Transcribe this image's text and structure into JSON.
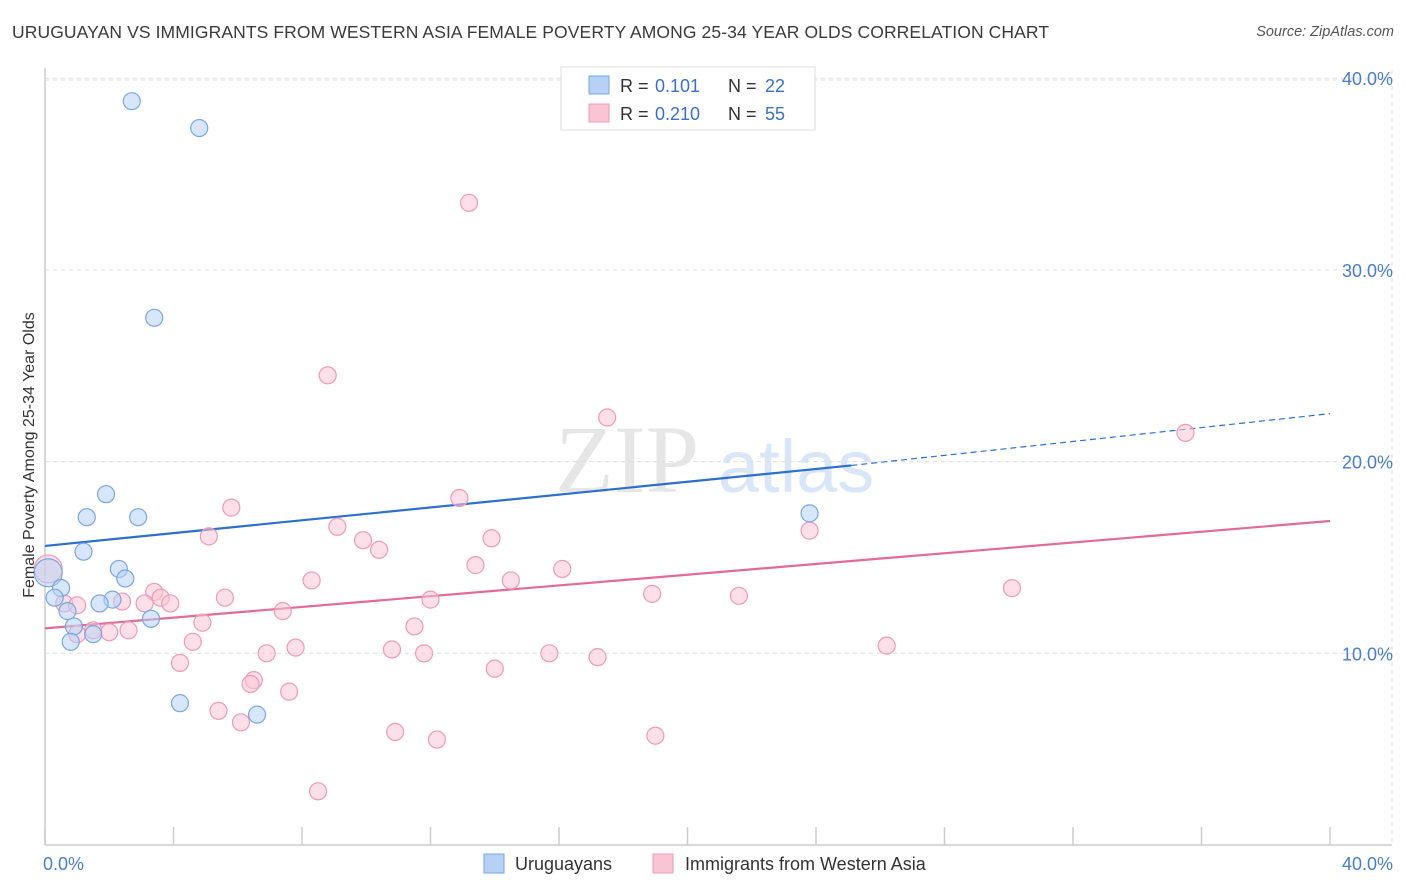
{
  "title": "URUGUAYAN VS IMMIGRANTS FROM WESTERN ASIA FEMALE POVERTY AMONG 25-34 YEAR OLDS CORRELATION CHART",
  "source": "Source: ZipAtlas.com",
  "watermark": {
    "zip": "ZIP",
    "atlas": "atlas"
  },
  "legend": {
    "r_label": "R = ",
    "n_label": "N = ",
    "series": [
      {
        "name": "Uruguayans",
        "r": "0.101",
        "n": "22"
      },
      {
        "name": "Immigrants from Western Asia",
        "r": "0.210",
        "n": "55"
      }
    ]
  },
  "chart_data": {
    "type": "scatter",
    "title": "URUGUAYAN VS IMMIGRANTS FROM WESTERN ASIA FEMALE POVERTY AMONG 25-34 YEAR OLDS CORRELATION CHART",
    "xlabel": "",
    "ylabel": "Female Poverty Among 25-34 Year Olds",
    "xlim": [
      0,
      40
    ],
    "ylim": [
      0,
      41
    ],
    "x_tick_labels": [
      "0.0%",
      "40.0%"
    ],
    "y_ticks": [
      10,
      20,
      30,
      40
    ],
    "y_tick_labels": [
      "10.0%",
      "20.0%",
      "30.0%",
      "40.0%"
    ],
    "grid": true,
    "colors": {
      "uruguayans_fill": "#b6d1f5",
      "uruguayans_stroke": "#7aa6e0",
      "uruguayans_line": "#2d6fcf",
      "immigrants_fill": "#f9c5d5",
      "immigrants_stroke": "#ec9bb6",
      "immigrants_line": "#e16b96"
    },
    "series": [
      {
        "name": "Uruguayans",
        "points": [
          {
            "x": 2.7,
            "y": 38.8
          },
          {
            "x": 4.8,
            "y": 37.4
          },
          {
            "x": 3.4,
            "y": 27.5
          },
          {
            "x": 1.9,
            "y": 18.3
          },
          {
            "x": 1.3,
            "y": 17.1
          },
          {
            "x": 2.9,
            "y": 17.1
          },
          {
            "x": 1.2,
            "y": 15.3
          },
          {
            "x": 2.3,
            "y": 14.4
          },
          {
            "x": 2.5,
            "y": 13.9
          },
          {
            "x": 0.1,
            "y": 14.2
          },
          {
            "x": 0.5,
            "y": 13.4
          },
          {
            "x": 0.3,
            "y": 12.9
          },
          {
            "x": 2.1,
            "y": 12.8
          },
          {
            "x": 1.7,
            "y": 12.6
          },
          {
            "x": 0.7,
            "y": 12.2
          },
          {
            "x": 3.3,
            "y": 11.8
          },
          {
            "x": 0.9,
            "y": 11.4
          },
          {
            "x": 1.5,
            "y": 11.0
          },
          {
            "x": 0.8,
            "y": 10.6
          },
          {
            "x": 4.2,
            "y": 7.4
          },
          {
            "x": 6.6,
            "y": 6.8
          },
          {
            "x": 23.8,
            "y": 17.3
          }
        ],
        "trend": {
          "x0": 0,
          "y0": 15.6,
          "x1": 25.1,
          "y1": 19.8,
          "dashed_x1": 40,
          "dashed_y1": 22.5
        }
      },
      {
        "name": "Immigrants from Western Asia",
        "points": [
          {
            "x": 13.2,
            "y": 33.5
          },
          {
            "x": 8.8,
            "y": 24.5
          },
          {
            "x": 17.5,
            "y": 22.3
          },
          {
            "x": 35.5,
            "y": 21.5
          },
          {
            "x": 12.9,
            "y": 18.1
          },
          {
            "x": 5.8,
            "y": 17.6
          },
          {
            "x": 9.1,
            "y": 16.6
          },
          {
            "x": 5.1,
            "y": 16.1
          },
          {
            "x": 13.9,
            "y": 16.0
          },
          {
            "x": 23.8,
            "y": 16.4
          },
          {
            "x": 9.9,
            "y": 15.9
          },
          {
            "x": 10.4,
            "y": 15.4
          },
          {
            "x": 13.4,
            "y": 14.6
          },
          {
            "x": 16.1,
            "y": 14.4
          },
          {
            "x": 0.1,
            "y": 14.4
          },
          {
            "x": 8.3,
            "y": 13.8
          },
          {
            "x": 14.5,
            "y": 13.8
          },
          {
            "x": 30.1,
            "y": 13.4
          },
          {
            "x": 3.4,
            "y": 13.2
          },
          {
            "x": 3.6,
            "y": 12.9
          },
          {
            "x": 12.0,
            "y": 12.8
          },
          {
            "x": 18.9,
            "y": 13.1
          },
          {
            "x": 21.6,
            "y": 13.0
          },
          {
            "x": 0.6,
            "y": 12.6
          },
          {
            "x": 1.0,
            "y": 12.5
          },
          {
            "x": 2.4,
            "y": 12.7
          },
          {
            "x": 3.1,
            "y": 12.6
          },
          {
            "x": 3.9,
            "y": 12.6
          },
          {
            "x": 7.4,
            "y": 12.2
          },
          {
            "x": 1.5,
            "y": 11.2
          },
          {
            "x": 2.0,
            "y": 11.1
          },
          {
            "x": 2.6,
            "y": 11.2
          },
          {
            "x": 4.9,
            "y": 11.6
          },
          {
            "x": 11.5,
            "y": 11.4
          },
          {
            "x": 4.6,
            "y": 10.6
          },
          {
            "x": 7.8,
            "y": 10.3
          },
          {
            "x": 10.8,
            "y": 10.2
          },
          {
            "x": 6.9,
            "y": 10.0
          },
          {
            "x": 11.8,
            "y": 10.0
          },
          {
            "x": 15.7,
            "y": 10.0
          },
          {
            "x": 17.2,
            "y": 9.8
          },
          {
            "x": 26.2,
            "y": 10.4
          },
          {
            "x": 4.2,
            "y": 9.5
          },
          {
            "x": 14.0,
            "y": 9.2
          },
          {
            "x": 6.5,
            "y": 8.6
          },
          {
            "x": 6.4,
            "y": 8.4
          },
          {
            "x": 7.6,
            "y": 8.0
          },
          {
            "x": 5.4,
            "y": 7.0
          },
          {
            "x": 6.1,
            "y": 6.4
          },
          {
            "x": 10.9,
            "y": 5.9
          },
          {
            "x": 12.2,
            "y": 5.5
          },
          {
            "x": 19.0,
            "y": 5.7
          },
          {
            "x": 8.5,
            "y": 2.8
          },
          {
            "x": 1.0,
            "y": 11.0
          },
          {
            "x": 5.6,
            "y": 12.9
          }
        ],
        "trend": {
          "x0": 0,
          "y0": 11.3,
          "x1": 40,
          "y1": 16.9
        }
      }
    ]
  }
}
